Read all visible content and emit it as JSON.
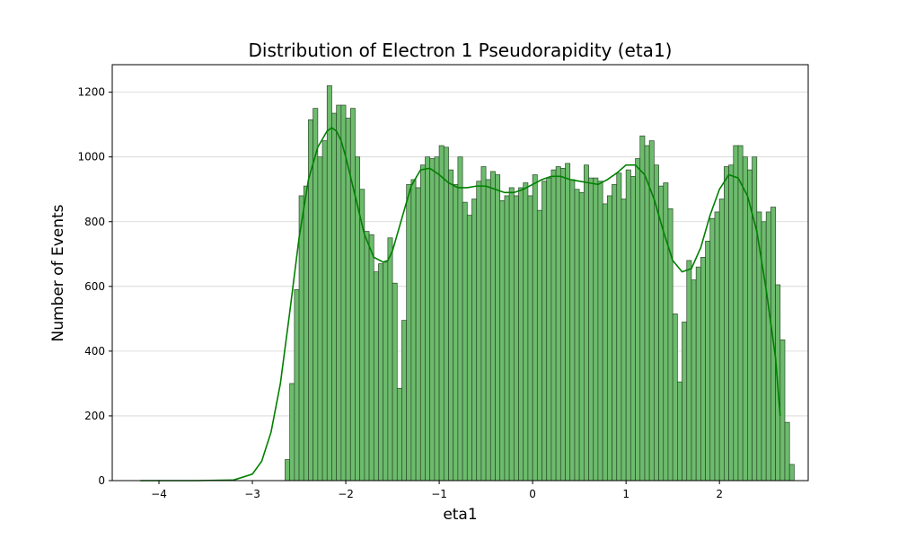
{
  "chart_data": {
    "type": "bar",
    "title": "Distribution of Electron 1 Pseudorapidity (eta1)",
    "xlabel": "eta1",
    "ylabel": "Number of Events",
    "xlim": [
      -4.5,
      2.95
    ],
    "ylim": [
      0,
      1285
    ],
    "x_ticks": [
      -4,
      -3,
      -2,
      -1,
      0,
      1,
      2
    ],
    "x_tick_labels": [
      "−4",
      "−3",
      "−2",
      "−1",
      "0",
      "1",
      "2"
    ],
    "y_ticks": [
      0,
      200,
      400,
      600,
      800,
      1000,
      1200
    ],
    "y_tick_labels": [
      "0",
      "200",
      "400",
      "600",
      "800",
      "1000",
      "1200"
    ],
    "grid": "horizontal",
    "bin_start": -2.65,
    "bin_width": 0.05,
    "counts": [
      65,
      300,
      590,
      880,
      910,
      1115,
      1150,
      1000,
      1050,
      1220,
      1135,
      1160,
      1160,
      1120,
      1150,
      1000,
      900,
      770,
      760,
      645,
      670,
      675,
      750,
      610,
      285,
      495,
      915,
      930,
      905,
      975,
      1000,
      995,
      1000,
      1035,
      1030,
      960,
      915,
      1000,
      860,
      820,
      870,
      925,
      970,
      930,
      955,
      945,
      865,
      880,
      905,
      880,
      905,
      920,
      880,
      945,
      835,
      925,
      935,
      960,
      970,
      965,
      980,
      930,
      900,
      890,
      975,
      935,
      935,
      925,
      855,
      880,
      915,
      950,
      870,
      960,
      940,
      995,
      1065,
      1035,
      1050,
      975,
      910,
      920,
      840,
      515,
      305,
      490,
      680,
      620,
      660,
      690,
      740,
      810,
      830,
      870,
      970,
      975,
      1035,
      1035,
      1000,
      960,
      1000,
      830,
      800,
      830,
      845,
      605,
      435,
      180,
      50
    ],
    "kde": {
      "x": [
        -4.2,
        -3.6,
        -3.2,
        -3.0,
        -2.9,
        -2.8,
        -2.7,
        -2.6,
        -2.5,
        -2.4,
        -2.3,
        -2.2,
        -2.15,
        -2.1,
        -2.05,
        -2.0,
        -1.9,
        -1.8,
        -1.7,
        -1.6,
        -1.55,
        -1.5,
        -1.4,
        -1.3,
        -1.2,
        -1.1,
        -1.0,
        -0.9,
        -0.8,
        -0.7,
        -0.6,
        -0.5,
        -0.4,
        -0.3,
        -0.2,
        -0.1,
        0.0,
        0.1,
        0.2,
        0.3,
        0.4,
        0.5,
        0.6,
        0.7,
        0.8,
        0.9,
        1.0,
        1.1,
        1.2,
        1.3,
        1.4,
        1.5,
        1.6,
        1.7,
        1.8,
        1.9,
        2.0,
        2.1,
        2.2,
        2.3,
        2.4,
        2.5,
        2.6,
        2.65
      ],
      "y": [
        0,
        0,
        2,
        20,
        60,
        150,
        300,
        520,
        750,
        930,
        1030,
        1080,
        1090,
        1080,
        1050,
        1000,
        880,
        760,
        690,
        675,
        680,
        710,
        810,
        910,
        960,
        965,
        945,
        920,
        905,
        905,
        910,
        910,
        900,
        890,
        890,
        900,
        915,
        930,
        940,
        940,
        930,
        925,
        920,
        915,
        930,
        950,
        975,
        975,
        945,
        870,
        770,
        680,
        645,
        655,
        720,
        820,
        900,
        945,
        935,
        880,
        770,
        590,
        380,
        200
      ]
    },
    "bar_fill": "#6dbb6d",
    "bar_edge": "#2a4a2a",
    "kde_color": "#008000",
    "grid_color": "#d3d3d3"
  }
}
